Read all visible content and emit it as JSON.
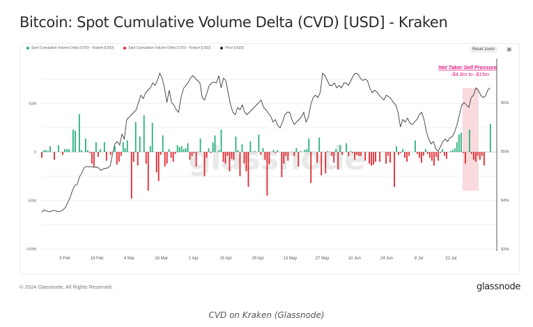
{
  "header": {
    "title": "Bitcoin: Spot Cumulative Volume Delta (CVD) [USD] - Kraken"
  },
  "toolbar": {
    "reset_zoom": "Reset zoom",
    "camera_icon": "camera-icon"
  },
  "footer": {
    "copyright": "© 2024 Glassnode. All Rights Reserved.",
    "brand": "glassnode",
    "caption": "CVD on Kraken (Glassnode)"
  },
  "watermark": "glassnode",
  "colors": {
    "positive": "#27b07a",
    "negative": "#e0262e",
    "price": "#3a3a3a",
    "annotation": "#e5177c",
    "highlight": "#f8d5d7"
  },
  "chart_data": {
    "type": "bar",
    "title": "Bitcoin: Spot Cumulative Volume Delta (CVD) [USD] - Kraken",
    "legend": [
      {
        "label": "Spot Cumulative Volume Delta (CVD) - Kraken [USD]",
        "color": "#27b07a"
      },
      {
        "label": "Spot Cumulative Volume Delta (CVD) - Kraken [USD]",
        "color": "#e0262e"
      },
      {
        "label": "Price [USD]",
        "color": "#222222"
      }
    ],
    "legend_position": "top-left",
    "x_start_day": 0,
    "x_ticks": [
      {
        "label": "5 Feb",
        "day": 10
      },
      {
        "label": "19 Feb",
        "day": 24
      },
      {
        "label": "4 Mar",
        "day": 38
      },
      {
        "label": "18 Mar",
        "day": 52
      },
      {
        "label": "1 Apr",
        "day": 66
      },
      {
        "label": "15 Apr",
        "day": 80
      },
      {
        "label": "29 Apr",
        "day": 94
      },
      {
        "label": "13 May",
        "day": 108
      },
      {
        "label": "27 May",
        "day": 122
      },
      {
        "label": "10 Jun",
        "day": 136
      },
      {
        "label": "24 Jun",
        "day": 150
      },
      {
        "label": "8 Jul",
        "day": 164
      },
      {
        "label": "22 Jul",
        "day": 178
      }
    ],
    "x_range_days": [
      0,
      196
    ],
    "y_left": {
      "ticks": [
        "50M",
        "0",
        "-50M",
        "-100M"
      ],
      "values": [
        50,
        0,
        -50,
        -100
      ],
      "range": [
        -100,
        75
      ],
      "unit": "M USD"
    },
    "y_right": {
      "ticks": [
        "$65k",
        "$55k",
        "$45k",
        "$35k"
      ],
      "values": [
        65,
        55,
        45,
        35
      ],
      "range": [
        35,
        67.5
      ],
      "unit": "k USD"
    },
    "grid": true,
    "cvd": [
      -6,
      2,
      2,
      1,
      6,
      0,
      -8,
      0,
      7,
      0,
      -3,
      3,
      3,
      3,
      0,
      23,
      22,
      0,
      39,
      2,
      0,
      14,
      2,
      -1,
      -12,
      -15,
      10,
      -5,
      3,
      0,
      10,
      -9,
      0,
      -3,
      0,
      6,
      -13,
      -10,
      -4,
      10,
      4,
      12,
      0,
      -48,
      -10,
      31,
      -14,
      16,
      0,
      38,
      -12,
      -40,
      6,
      30,
      0,
      -21,
      -30,
      -3,
      17,
      -15,
      -12,
      3,
      -6,
      -10,
      -2,
      7,
      5,
      6,
      3,
      4,
      9,
      -8,
      -4,
      -1,
      -15,
      0,
      14,
      0,
      -25,
      -6,
      4,
      -1,
      10,
      17,
      0,
      2,
      23,
      -10,
      -12,
      -4,
      -20,
      -7,
      -8,
      16,
      2,
      -25,
      8,
      -12,
      -20,
      -36,
      11,
      0,
      1,
      0,
      18,
      -3,
      4,
      -8,
      -45,
      -13,
      0,
      2,
      -1,
      2,
      0,
      -26,
      -12,
      -4,
      -9,
      0,
      0,
      -4,
      4,
      -15,
      1,
      0,
      2,
      3,
      14,
      -32,
      0,
      0,
      -11,
      15,
      -24,
      0,
      -22,
      1,
      0,
      -4,
      -11,
      3,
      -18,
      7,
      -3,
      0,
      9,
      -4,
      1,
      -1,
      -8,
      -3,
      -4,
      -4,
      0,
      -9,
      0,
      -12,
      -14,
      -13,
      -10,
      0,
      -10,
      0,
      0,
      -12,
      -4,
      -11,
      0,
      -36,
      6,
      -3,
      -1,
      3,
      -6,
      -10,
      -4,
      0,
      0,
      12,
      -2,
      -6,
      -11,
      -4,
      3,
      -2,
      -6,
      -9,
      -14,
      -5,
      -9,
      -1,
      3,
      -4,
      -7,
      0,
      1,
      2,
      4,
      10,
      18,
      20,
      -1,
      -12,
      0,
      23,
      -2,
      -8,
      -10,
      -4,
      -8,
      -4,
      -14,
      0,
      0,
      29
    ],
    "price_k": [
      42.5,
      43.0,
      42.8,
      42.6,
      42.7,
      42.9,
      42.8,
      42.6,
      42.7,
      43.0,
      43.5,
      44.5,
      45.5,
      47.0,
      48.0,
      48.2,
      49.8,
      50.6,
      51.7,
      51.9,
      51.8,
      51.9,
      51.7,
      51.8,
      51.6,
      51.1,
      51.4,
      51.5,
      51.6,
      52.0,
      54.5,
      56.5,
      57.0,
      56.3,
      58.5,
      57.5,
      61.5,
      62.0,
      62.5,
      63.0,
      63.5,
      65.0,
      66.5,
      65.8,
      67.0,
      67.5,
      68.0,
      69.0,
      68.5,
      69.5,
      71.0,
      70.0,
      68.0,
      65.0,
      67.5,
      65.0,
      64.5,
      63.5,
      63.0,
      66.0,
      67.8,
      68.5,
      69.0,
      70.0,
      70.5,
      70.0,
      69.5,
      69.0,
      66.0,
      65.5,
      67.0,
      68.5,
      69.0,
      69.2,
      69.0,
      70.5,
      68.0,
      70.0,
      69.5,
      67.0,
      64.5,
      63.0,
      62.5,
      64.0,
      63.5,
      64.5,
      63.0,
      62.5,
      63.0,
      63.5,
      64.0,
      64.5,
      65.0,
      65.5,
      64.0,
      63.5,
      62.8,
      62.2,
      61.0,
      61.5,
      60.3,
      59.8,
      61.0,
      62.5,
      63.0,
      63.0,
      61.5,
      60.5,
      61.0,
      61.5,
      62.0,
      63.0,
      61.0,
      62.0,
      64.5,
      66.0,
      66.5,
      66.0,
      67.0,
      71.0,
      70.5,
      69.5,
      68.5,
      68.5,
      69.0,
      68.0,
      68.5,
      68.0,
      69.0,
      69.0,
      68.5,
      69.5,
      70.5,
      71.0,
      70.8,
      70.0,
      69.5,
      69.8,
      69.5,
      68.0,
      67.0,
      67.5,
      67.2,
      66.5,
      66.0,
      65.5,
      66.5,
      66.2,
      65.8,
      65.0,
      64.5,
      63.0,
      60.0,
      61.5,
      61.0,
      61.8,
      60.8,
      60.5,
      61.0,
      61.5,
      62.5,
      63.0,
      61.5,
      59.0,
      57.5,
      56.5,
      57.0,
      55.5,
      55.0,
      56.0,
      57.0,
      57.5,
      57.0,
      57.8,
      58.0,
      59.0,
      60.5,
      62.5,
      64.5,
      65.0,
      64.5,
      64.0,
      66.0,
      66.5,
      68.0,
      67.5,
      66.5,
      66.0,
      66.3,
      67.5,
      68.0
    ],
    "annotation": {
      "title": "Net Taker Sell Pressure",
      "subtitle": "-$4.8m to -$15m",
      "highlight_days": [
        183,
        190
      ],
      "highlight_cvd_range": [
        -40,
        66
      ]
    }
  }
}
